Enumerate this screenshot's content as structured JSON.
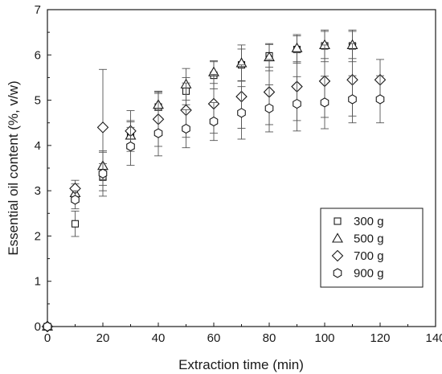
{
  "chart_data": {
    "type": "scatter",
    "xlabel": "Extraction time (min)",
    "ylabel": "Essential oil content (%, v/w)",
    "xlim": [
      0,
      140
    ],
    "ylim": [
      0,
      7
    ],
    "xticks": [
      "0",
      "20",
      "40",
      "60",
      "80",
      "100",
      "120",
      "140"
    ],
    "yticks": [
      "0",
      "1",
      "2",
      "3",
      "4",
      "5",
      "6",
      "7"
    ],
    "grid": false,
    "legend": "right-middle",
    "error_bars": true,
    "series": [
      {
        "name": "300 g",
        "marker": "square",
        "points": [
          {
            "x": 0,
            "y": 0,
            "err": 0
          },
          {
            "x": 10,
            "y": 2.27,
            "err": 0.28
          },
          {
            "x": 20,
            "y": 3.3,
            "err": 0.3
          },
          {
            "x": 30,
            "y": 4.25,
            "err": 0.3
          },
          {
            "x": 40,
            "y": 4.85,
            "err": 0.3
          },
          {
            "x": 50,
            "y": 5.2,
            "err": 0.3
          },
          {
            "x": 60,
            "y": 5.55,
            "err": 0.3
          },
          {
            "x": 70,
            "y": 5.78,
            "err": 0.35
          },
          {
            "x": 80,
            "y": 5.98,
            "err": 0.25
          },
          {
            "x": 90,
            "y": 6.12,
            "err": 0.3
          },
          {
            "x": 100,
            "y": 6.2,
            "err": 0.35
          },
          {
            "x": 110,
            "y": 6.2,
            "err": 0.35
          }
        ]
      },
      {
        "name": "500 g",
        "marker": "triangle",
        "points": [
          {
            "x": 0,
            "y": 0,
            "err": 0
          },
          {
            "x": 10,
            "y": 2.95,
            "err": 0.2
          },
          {
            "x": 20,
            "y": 3.55,
            "err": 0.3
          },
          {
            "x": 30,
            "y": 4.22,
            "err": 0.3
          },
          {
            "x": 40,
            "y": 4.9,
            "err": 0.3
          },
          {
            "x": 50,
            "y": 5.35,
            "err": 0.35
          },
          {
            "x": 60,
            "y": 5.62,
            "err": 0.25
          },
          {
            "x": 70,
            "y": 5.82,
            "err": 0.4
          },
          {
            "x": 80,
            "y": 5.95,
            "err": 0.3
          },
          {
            "x": 90,
            "y": 6.15,
            "err": 0.3
          },
          {
            "x": 100,
            "y": 6.22,
            "err": 0.3
          },
          {
            "x": 110,
            "y": 6.22,
            "err": 0.3
          }
        ]
      },
      {
        "name": "700 g",
        "marker": "diamond",
        "points": [
          {
            "x": 0,
            "y": 0,
            "err": 0
          },
          {
            "x": 10,
            "y": 3.05,
            "err": 0.18
          },
          {
            "x": 20,
            "y": 4.4,
            "err": 1.28
          },
          {
            "x": 30,
            "y": 4.32,
            "err": 0.45
          },
          {
            "x": 40,
            "y": 4.58,
            "err": 0.6
          },
          {
            "x": 50,
            "y": 4.78,
            "err": 0.6
          },
          {
            "x": 60,
            "y": 4.92,
            "err": 0.65
          },
          {
            "x": 70,
            "y": 5.08,
            "err": 0.7
          },
          {
            "x": 80,
            "y": 5.18,
            "err": 0.72
          },
          {
            "x": 90,
            "y": 5.3,
            "err": 0.75
          },
          {
            "x": 100,
            "y": 5.42,
            "err": 0.8
          },
          {
            "x": 110,
            "y": 5.45,
            "err": 0.8
          },
          {
            "x": 120,
            "y": 5.45,
            "err": 0.45
          }
        ]
      },
      {
        "name": "900 g",
        "marker": "hexagon",
        "points": [
          {
            "x": 0,
            "y": 0,
            "err": 0
          },
          {
            "x": 10,
            "y": 2.8,
            "err": 0.2
          },
          {
            "x": 20,
            "y": 3.38,
            "err": 0.5
          },
          {
            "x": 30,
            "y": 3.98,
            "err": 0.42
          },
          {
            "x": 40,
            "y": 4.27,
            "err": 0.5
          },
          {
            "x": 50,
            "y": 4.37,
            "err": 0.42
          },
          {
            "x": 60,
            "y": 4.53,
            "err": 0.42
          },
          {
            "x": 70,
            "y": 4.72,
            "err": 0.58
          },
          {
            "x": 80,
            "y": 4.82,
            "err": 0.52
          },
          {
            "x": 90,
            "y": 4.92,
            "err": 0.6
          },
          {
            "x": 100,
            "y": 4.95,
            "err": 0.58
          },
          {
            "x": 110,
            "y": 5.02,
            "err": 0.52
          },
          {
            "x": 120,
            "y": 5.02,
            "err": 0.52
          }
        ]
      }
    ]
  }
}
